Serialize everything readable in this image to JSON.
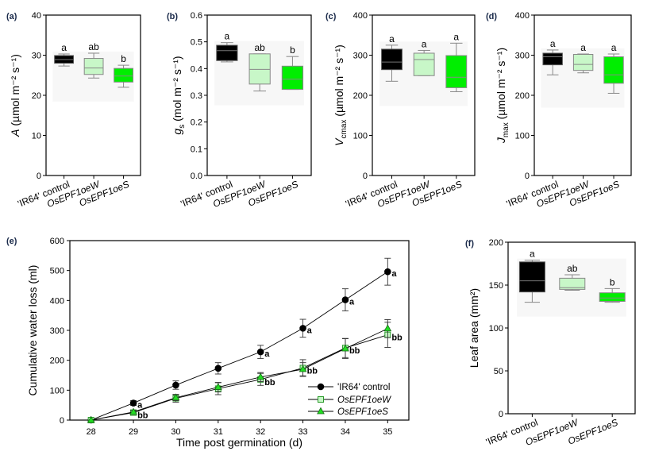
{
  "figure": {
    "categories": [
      "'IR64' control",
      "OsEPF1oeW",
      "OsEPF1oeS"
    ],
    "category_colors": [
      "#000000",
      "#c8f7c8",
      "#00ee00"
    ]
  },
  "chart_data": [
    {
      "panel": "(a)",
      "type": "box",
      "ylabel_main": "A",
      "ylabel_rest": " (µmol m⁻² s⁻¹)",
      "ylim": [
        0,
        40
      ],
      "yticks": [
        0,
        10,
        20,
        30,
        40
      ],
      "categories": [
        "'IR64' control",
        "OsEPF1oeW",
        "OsEPF1oeS"
      ],
      "boxes": [
        {
          "min": 27.3,
          "q1": 28.0,
          "median": 28.9,
          "q3": 29.9,
          "max": 30.3,
          "sig": "a"
        },
        {
          "min": 24.3,
          "q1": 25.2,
          "median": 26.8,
          "q3": 29.2,
          "max": 30.5,
          "sig": "ab"
        },
        {
          "min": 22.0,
          "q1": 23.3,
          "median": 24.8,
          "q3": 26.7,
          "max": 27.5,
          "sig": "b"
        }
      ]
    },
    {
      "panel": "(b)",
      "type": "box",
      "ylabel_main": "g",
      "ylabel_sub": "s",
      "ylabel_rest": " (mol m⁻² s⁻¹)",
      "ylim": [
        0,
        0.6
      ],
      "yticks": [
        "0.0",
        "0.1",
        "0.2",
        "0.3",
        "0.4",
        "0.5",
        "0.6"
      ],
      "categories": [
        "'IR64' control",
        "OsEPF1oeW",
        "OsEPF1oeS"
      ],
      "boxes": [
        {
          "min": 0.425,
          "q1": 0.43,
          "median": 0.467,
          "q3": 0.487,
          "max": 0.497,
          "sig": "a"
        },
        {
          "min": 0.316,
          "q1": 0.342,
          "median": 0.397,
          "q3": 0.455,
          "max": 0.455,
          "sig": "ab"
        },
        {
          "min": 0.322,
          "q1": 0.322,
          "median": 0.36,
          "q3": 0.409,
          "max": 0.445,
          "sig": "b"
        }
      ]
    },
    {
      "panel": "(c)",
      "type": "box",
      "ylabel_main": "V",
      "ylabel_sub": "cmax",
      "ylabel_rest": " (µmol m⁻² s⁻¹)",
      "ylim": [
        0,
        400
      ],
      "yticks": [
        0,
        100,
        200,
        300,
        400
      ],
      "categories": [
        "'IR64' control",
        "OsEPF1oeW",
        "OsEPF1oeS"
      ],
      "boxes": [
        {
          "min": 235,
          "q1": 264,
          "median": 283,
          "q3": 315,
          "max": 325,
          "sig": "a"
        },
        {
          "min": 249,
          "q1": 249,
          "median": 289,
          "q3": 305,
          "max": 312,
          "sig": "a"
        },
        {
          "min": 209,
          "q1": 219,
          "median": 245,
          "q3": 299,
          "max": 330,
          "sig": "a"
        }
      ]
    },
    {
      "panel": "(d)",
      "type": "box",
      "ylabel_main": "J",
      "ylabel_sub": "max",
      "ylabel_rest": " (µmol m⁻² s⁻¹)",
      "ylim": [
        0,
        400
      ],
      "yticks": [
        0,
        100,
        200,
        300,
        400
      ],
      "categories": [
        "'IR64' control",
        "OsEPF1oeW",
        "OsEPF1oeS"
      ],
      "boxes": [
        {
          "min": 251,
          "q1": 276,
          "median": 296,
          "q3": 305,
          "max": 313,
          "sig": "a"
        },
        {
          "min": 256,
          "q1": 262,
          "median": 277,
          "q3": 302,
          "max": 303,
          "sig": "a"
        },
        {
          "min": 205,
          "q1": 230,
          "median": 251,
          "q3": 296,
          "max": 303,
          "sig": "a"
        }
      ]
    },
    {
      "panel": "(e)",
      "type": "line",
      "xlabel": "Time post germination (d)",
      "ylabel": "Cumulative water loss (ml)",
      "x": [
        28,
        29,
        30,
        31,
        32,
        33,
        34,
        35
      ],
      "xlim": [
        27.5,
        35.5
      ],
      "ylim": [
        0,
        600
      ],
      "yticks": [
        0,
        100,
        200,
        300,
        400,
        500,
        600
      ],
      "series": [
        {
          "name": "'IR64' control",
          "marker": "circle",
          "values": [
            0,
            57,
            117,
            173,
            228,
            307,
            402,
            496
          ],
          "errors": [
            0,
            8,
            14,
            19,
            22,
            30,
            37,
            45
          ],
          "sig": [
            "",
            "a",
            "",
            "",
            "a",
            "a",
            "a",
            "a"
          ]
        },
        {
          "name": "OsEPF1oeW",
          "marker": "square",
          "values": [
            0,
            25,
            73,
            105,
            136,
            174,
            241,
            285
          ],
          "errors": [
            0,
            5,
            13,
            20,
            20,
            28,
            32,
            42
          ],
          "sig": [
            "",
            "bb",
            "",
            "",
            "bb",
            "bb",
            "bb",
            "bb"
          ]
        },
        {
          "name": "OsEPF1oeS",
          "marker": "triangle",
          "values": [
            0,
            27,
            75,
            110,
            144,
            170,
            239,
            306
          ],
          "errors": [
            0,
            5,
            10,
            16,
            15,
            22,
            33,
            30
          ]
        }
      ],
      "legend_position": "bottom-right"
    },
    {
      "panel": "(f)",
      "type": "box",
      "ylabel": "Leaf area (mm²)",
      "ylim": [
        0,
        200
      ],
      "yticks": [
        0,
        50,
        100,
        150,
        200
      ],
      "categories": [
        "'IR64' control",
        "OsEPF1oeW",
        "OsEPF1oeS"
      ],
      "boxes": [
        {
          "min": 130,
          "q1": 142,
          "median": 155,
          "q3": 177,
          "max": 179,
          "sig": "a"
        },
        {
          "min": 144,
          "q1": 145,
          "median": 147,
          "q3": 158,
          "max": 162,
          "sig": "ab"
        },
        {
          "min": 130,
          "q1": 131,
          "median": 135,
          "q3": 141,
          "max": 146,
          "sig": "b"
        }
      ]
    }
  ]
}
